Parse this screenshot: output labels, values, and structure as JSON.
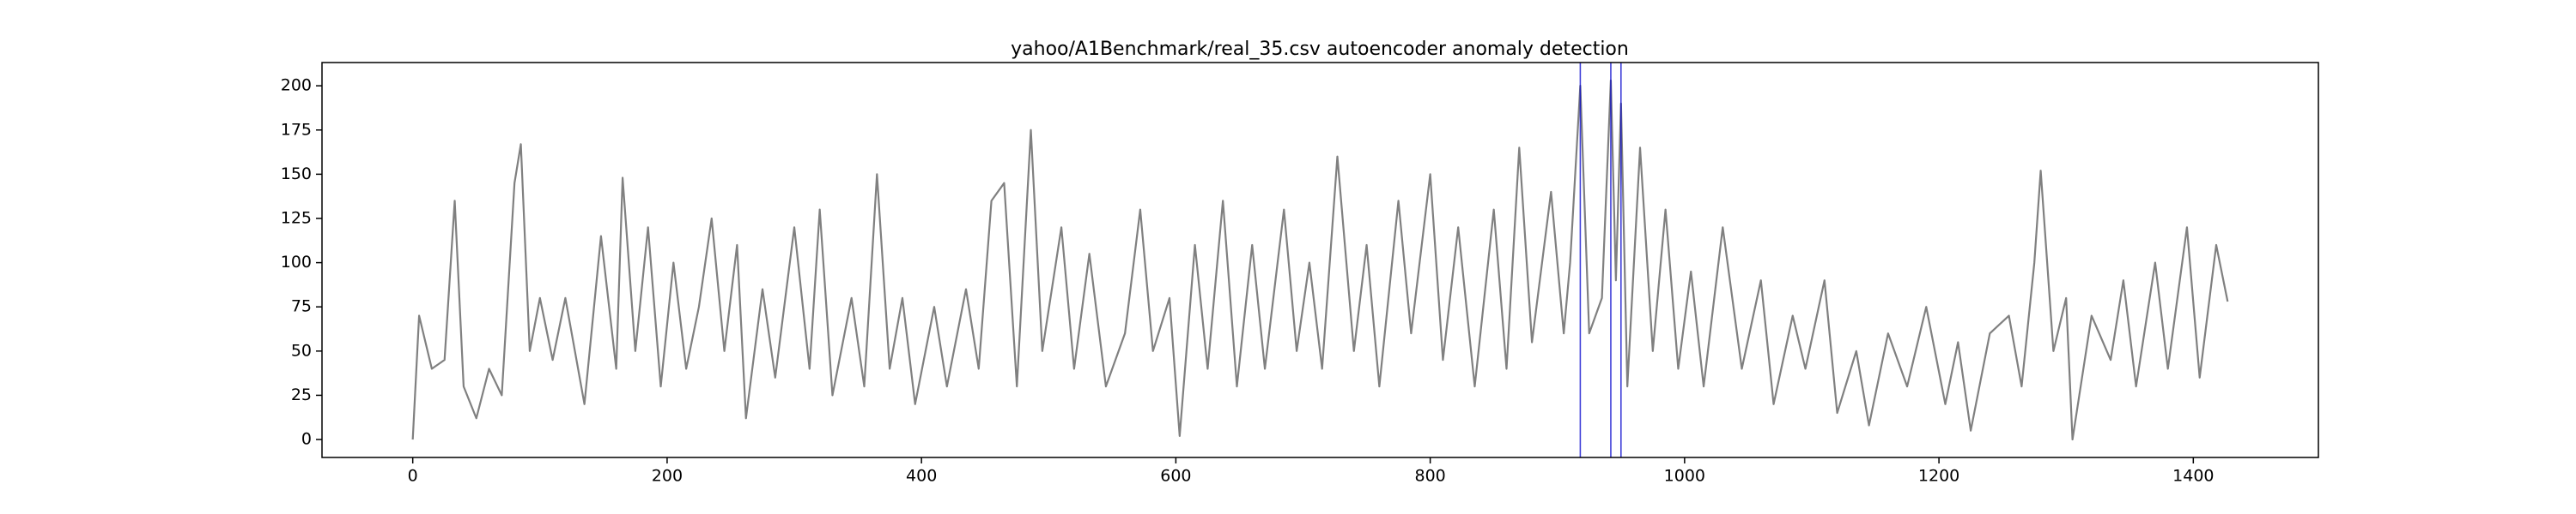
{
  "chart_data": {
    "type": "line",
    "title": "yahoo/A1Benchmark/real_35.csv autoencoder anomaly detection",
    "x": [
      0,
      5,
      15,
      25,
      33,
      40,
      50,
      60,
      70,
      80,
      85,
      92,
      100,
      110,
      120,
      135,
      148,
      160,
      165,
      175,
      185,
      195,
      205,
      215,
      225,
      235,
      245,
      255,
      262,
      275,
      285,
      300,
      312,
      320,
      330,
      345,
      355,
      365,
      375,
      385,
      395,
      410,
      420,
      435,
      445,
      455,
      465,
      475,
      486,
      495,
      510,
      520,
      532,
      545,
      560,
      572,
      582,
      595,
      603,
      615,
      625,
      637,
      648,
      660,
      670,
      685,
      695,
      705,
      715,
      727,
      740,
      750,
      760,
      775,
      785,
      800,
      810,
      822,
      835,
      850,
      860,
      870,
      880,
      895,
      905,
      910,
      918,
      925,
      935,
      942,
      946,
      950,
      955,
      965,
      975,
      985,
      995,
      1005,
      1015,
      1030,
      1045,
      1060,
      1070,
      1085,
      1095,
      1110,
      1120,
      1135,
      1145,
      1160,
      1175,
      1190,
      1205,
      1215,
      1225,
      1240,
      1255,
      1265,
      1275,
      1280,
      1290,
      1300,
      1305,
      1320,
      1335,
      1345,
      1355,
      1370,
      1380,
      1395,
      1405,
      1418,
      1427
    ],
    "values": [
      0,
      70,
      40,
      45,
      135,
      30,
      12,
      40,
      25,
      145,
      167,
      50,
      80,
      45,
      80,
      20,
      115,
      40,
      148,
      50,
      120,
      30,
      100,
      40,
      75,
      125,
      50,
      110,
      12,
      85,
      35,
      120,
      40,
      130,
      25,
      80,
      30,
      150,
      40,
      80,
      20,
      75,
      30,
      85,
      40,
      135,
      145,
      30,
      175,
      50,
      120,
      40,
      105,
      30,
      60,
      130,
      50,
      80,
      2,
      110,
      40,
      135,
      30,
      110,
      40,
      130,
      50,
      100,
      40,
      160,
      50,
      110,
      30,
      135,
      60,
      150,
      45,
      120,
      30,
      130,
      40,
      165,
      55,
      140,
      60,
      100,
      200,
      60,
      80,
      203,
      90,
      190,
      30,
      165,
      50,
      130,
      40,
      95,
      30,
      120,
      40,
      90,
      20,
      70,
      40,
      90,
      15,
      50,
      8,
      60,
      30,
      75,
      20,
      55,
      5,
      60,
      70,
      30,
      100,
      152,
      50,
      80,
      0,
      70,
      45,
      90,
      30,
      100,
      40,
      120,
      35,
      110,
      78
    ],
    "color": "#808080",
    "anomalies": [
      918,
      942,
      950
    ],
    "anomaly_color": "#0000cc",
    "xlim": [
      -71.35,
      1498.35
    ],
    "xticks": [
      0,
      200,
      400,
      600,
      800,
      1000,
      1200,
      1400
    ],
    "ylim": [
      -10.15,
      213.15
    ],
    "yticks": [
      0,
      25,
      50,
      75,
      100,
      125,
      150,
      175,
      200
    ]
  }
}
